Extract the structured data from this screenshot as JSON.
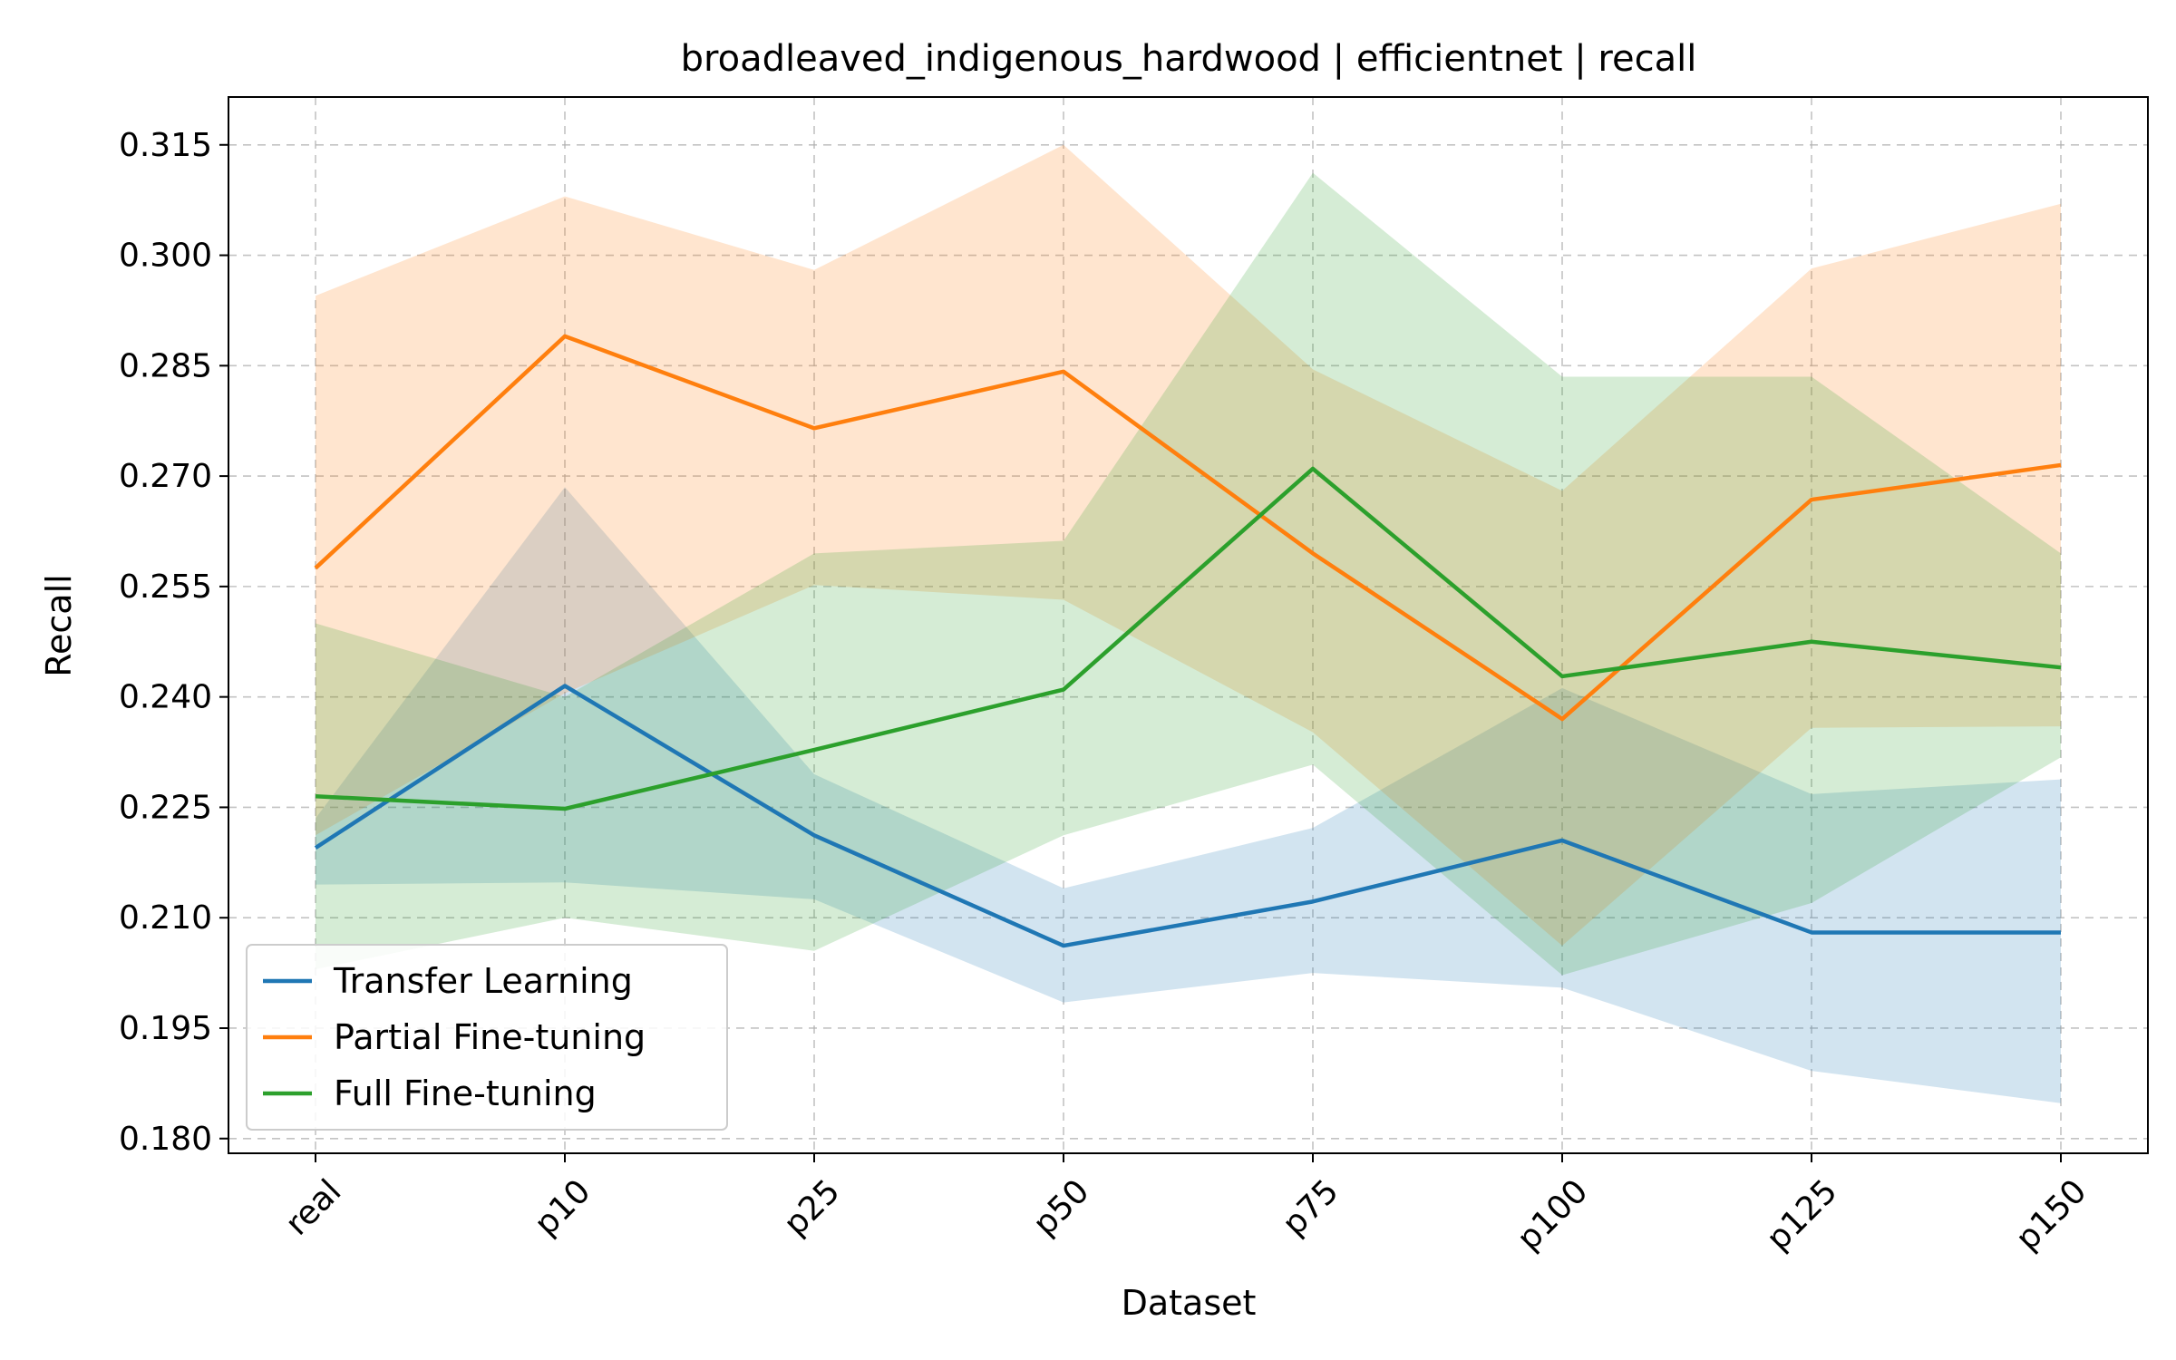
{
  "chart_data": {
    "type": "line",
    "title": "broadleaved_indigenous_hardwood | efficientnet | recall",
    "xlabel": "Dataset",
    "ylabel": "Recall",
    "categories": [
      "real",
      "p10",
      "p25",
      "p50",
      "p75",
      "p100",
      "p125",
      "p150"
    ],
    "yticks": [
      "0.180",
      "0.195",
      "0.210",
      "0.225",
      "0.240",
      "0.255",
      "0.270",
      "0.285",
      "0.300",
      "0.315"
    ],
    "ylim": [
      0.178,
      0.3215
    ],
    "grid": true,
    "legend_position": "lower-left",
    "series": [
      {
        "name": "Transfer Learning",
        "color": "#1f77b4",
        "values": [
          0.2195,
          0.2415,
          0.2212,
          0.2062,
          0.2122,
          0.2205,
          0.208,
          0.208
        ],
        "lower": [
          0.2145,
          0.2148,
          0.2125,
          0.1985,
          0.2025,
          0.2005,
          0.1892,
          0.1848
        ],
        "upper": [
          0.2235,
          0.2685,
          0.2295,
          0.214,
          0.2222,
          0.2412,
          0.2268,
          0.2288
        ]
      },
      {
        "name": "Partial Fine-tuning",
        "color": "#ff7f0e",
        "values": [
          0.2575,
          0.289,
          0.2765,
          0.2842,
          0.2595,
          0.237,
          0.2668,
          0.2715
        ],
        "lower": [
          0.2212,
          0.2405,
          0.2552,
          0.2532,
          0.2352,
          0.2062,
          0.2358,
          0.236
        ],
        "upper": [
          0.2945,
          0.308,
          0.298,
          0.315,
          0.2845,
          0.268,
          0.2982,
          0.307
        ]
      },
      {
        "name": "Full Fine-tuning",
        "color": "#2ca02c",
        "values": [
          0.2265,
          0.2248,
          0.2328,
          0.241,
          0.271,
          0.2428,
          0.2475,
          0.244
        ],
        "lower": [
          0.203,
          0.21,
          0.2055,
          0.2212,
          0.2308,
          0.2022,
          0.212,
          0.2318
        ],
        "upper": [
          0.25,
          0.24,
          0.2595,
          0.2612,
          0.3112,
          0.2835,
          0.2835,
          0.2595
        ]
      }
    ]
  }
}
